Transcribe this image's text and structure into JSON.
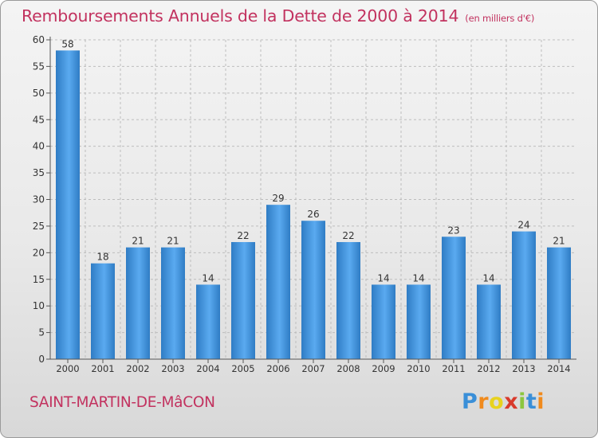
{
  "title": "Remboursements Annuels de la Dette de 2000 à 2014",
  "title_unit": "(en milliers d'€)",
  "commune": "SAINT-MARTIN-DE-MâCON",
  "logo": {
    "letters": [
      "P",
      "r",
      "o",
      "x",
      "i",
      "t",
      "i"
    ],
    "colors": [
      "#3a8fd8",
      "#f08a1c",
      "#e8d21e",
      "#d83a2c",
      "#8cc63f",
      "#3a8fd8",
      "#f08a1c"
    ]
  },
  "colors": {
    "accent": "#c2325f",
    "bar_light": "#5aaaf0",
    "bar_dark": "#2f7cc4",
    "grid": "#bdbdbd",
    "axis": "#555555"
  },
  "chart_data": {
    "type": "bar",
    "categories": [
      "2000",
      "2001",
      "2002",
      "2003",
      "2004",
      "2005",
      "2006",
      "2007",
      "2008",
      "2009",
      "2010",
      "2011",
      "2012",
      "2013",
      "2014"
    ],
    "values": [
      58,
      18,
      21,
      21,
      14,
      22,
      29,
      26,
      22,
      14,
      14,
      23,
      14,
      24,
      21
    ],
    "xlabel": "",
    "ylabel": "",
    "ylim": [
      0,
      60
    ],
    "yticks": [
      0,
      5,
      10,
      15,
      20,
      25,
      30,
      35,
      40,
      45,
      50,
      55,
      60
    ],
    "grid": true,
    "data_labels": true
  }
}
